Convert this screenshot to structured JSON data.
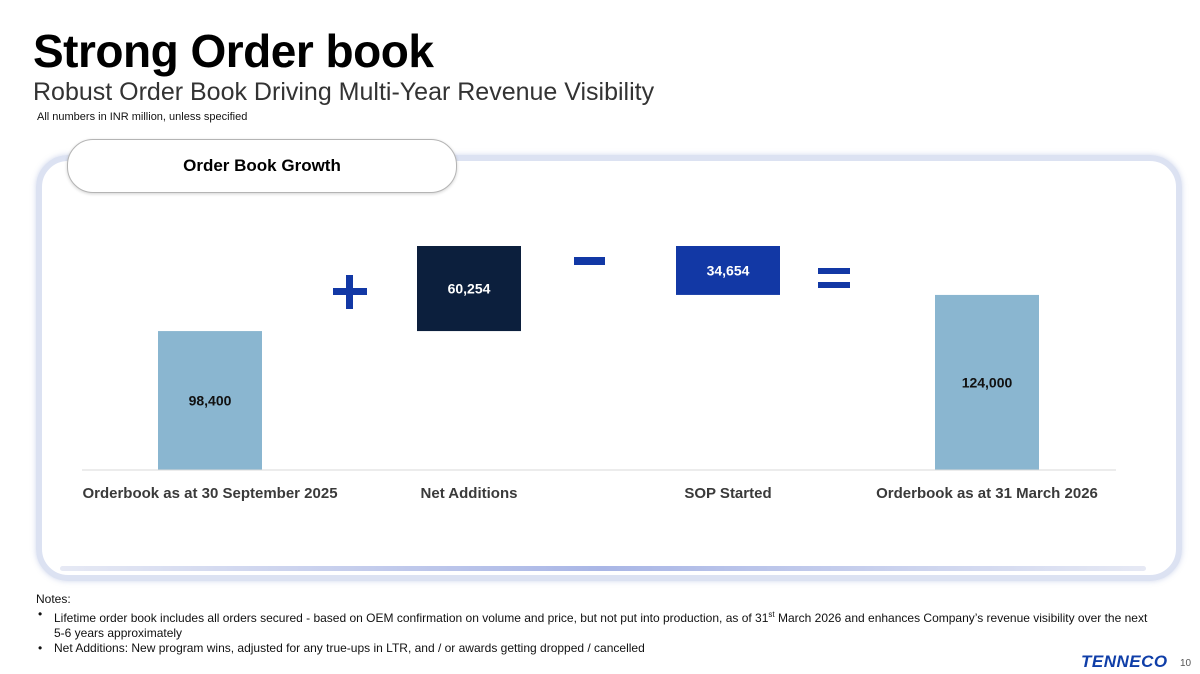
{
  "slide": {
    "title": "Strong Order book",
    "subtitle": "Robust Order Book Driving Multi-Year Revenue Visibility",
    "units_note": "All numbers in INR million, unless specified",
    "panel_title": "Order Book Growth",
    "page_number": "10",
    "logo_text": "TENNECO"
  },
  "colors": {
    "light_blue": "#8ab6d0",
    "navy": "#0c1f3d",
    "royal_blue": "#1238a5",
    "operator": "#1238a5"
  },
  "chart_data": {
    "type": "bar",
    "subtype": "waterfall",
    "categories": [
      "Orderbook as at 30 September 2025",
      "Net Additions",
      "SOP Started",
      "Orderbook as at 31 March 2026"
    ],
    "values": [
      98400,
      60254,
      -34654,
      124000
    ],
    "value_labels": [
      "98,400",
      "60,254",
      "34,654",
      "124,000"
    ],
    "operators": [
      "+",
      "−",
      "="
    ],
    "ylim": [
      0,
      158654
    ],
    "grid": false,
    "legend": "none"
  },
  "notes": {
    "heading": "Notes:",
    "items": [
      {
        "text_a": "Lifetime order book includes all orders secured - based on OEM confirmation on volume and price, but not put into production, as of 31",
        "sup": "st",
        "text_b": " March 2026 and enhances Company’s revenue visibility over the next 5-6 years approximately"
      },
      {
        "text_a": "Net Additions: New program wins, adjusted for any true-ups in LTR, and / or awards getting dropped / cancelled",
        "sup": "",
        "text_b": ""
      }
    ]
  }
}
